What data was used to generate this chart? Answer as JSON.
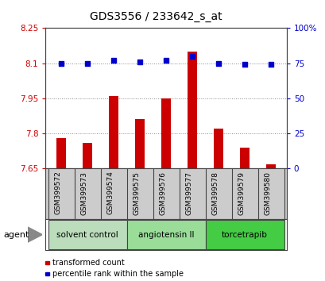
{
  "title": "GDS3556 / 233642_s_at",
  "samples": [
    "GSM399572",
    "GSM399573",
    "GSM399574",
    "GSM399575",
    "GSM399576",
    "GSM399577",
    "GSM399578",
    "GSM399579",
    "GSM399580"
  ],
  "bar_values": [
    7.78,
    7.76,
    7.96,
    7.86,
    7.95,
    8.15,
    7.82,
    7.74,
    7.67
  ],
  "dot_values": [
    75,
    75,
    77,
    76,
    77,
    80,
    75,
    74,
    74
  ],
  "bar_bottom": 7.65,
  "ylim_left": [
    7.65,
    8.25
  ],
  "ylim_right": [
    0,
    100
  ],
  "yticks_left": [
    7.65,
    7.8,
    7.95,
    8.1,
    8.25
  ],
  "ytick_labels_left": [
    "7.65",
    "7.8",
    "7.95",
    "8.1",
    "8.25"
  ],
  "yticks_right": [
    0,
    25,
    50,
    75,
    100
  ],
  "ytick_labels_right": [
    "0",
    "25",
    "50",
    "75",
    "100%"
  ],
  "bar_color": "#cc0000",
  "dot_color": "#0000cc",
  "groups": [
    {
      "label": "solvent control",
      "samples": [
        0,
        1,
        2
      ],
      "color": "#bbddbb"
    },
    {
      "label": "angiotensin II",
      "samples": [
        3,
        4,
        5
      ],
      "color": "#99dd99"
    },
    {
      "label": "torcetrapib",
      "samples": [
        6,
        7,
        8
      ],
      "color": "#44cc44"
    }
  ],
  "legend_bar_label": "transformed count",
  "legend_dot_label": "percentile rank within the sample",
  "agent_label": "agent",
  "grid_color": "#888888",
  "grid_yticks": [
    7.8,
    7.95,
    8.1
  ],
  "background_plot": "#ffffff",
  "background_sample": "#cccccc",
  "tick_label_color_left": "#cc0000",
  "tick_label_color_right": "#0000cc"
}
